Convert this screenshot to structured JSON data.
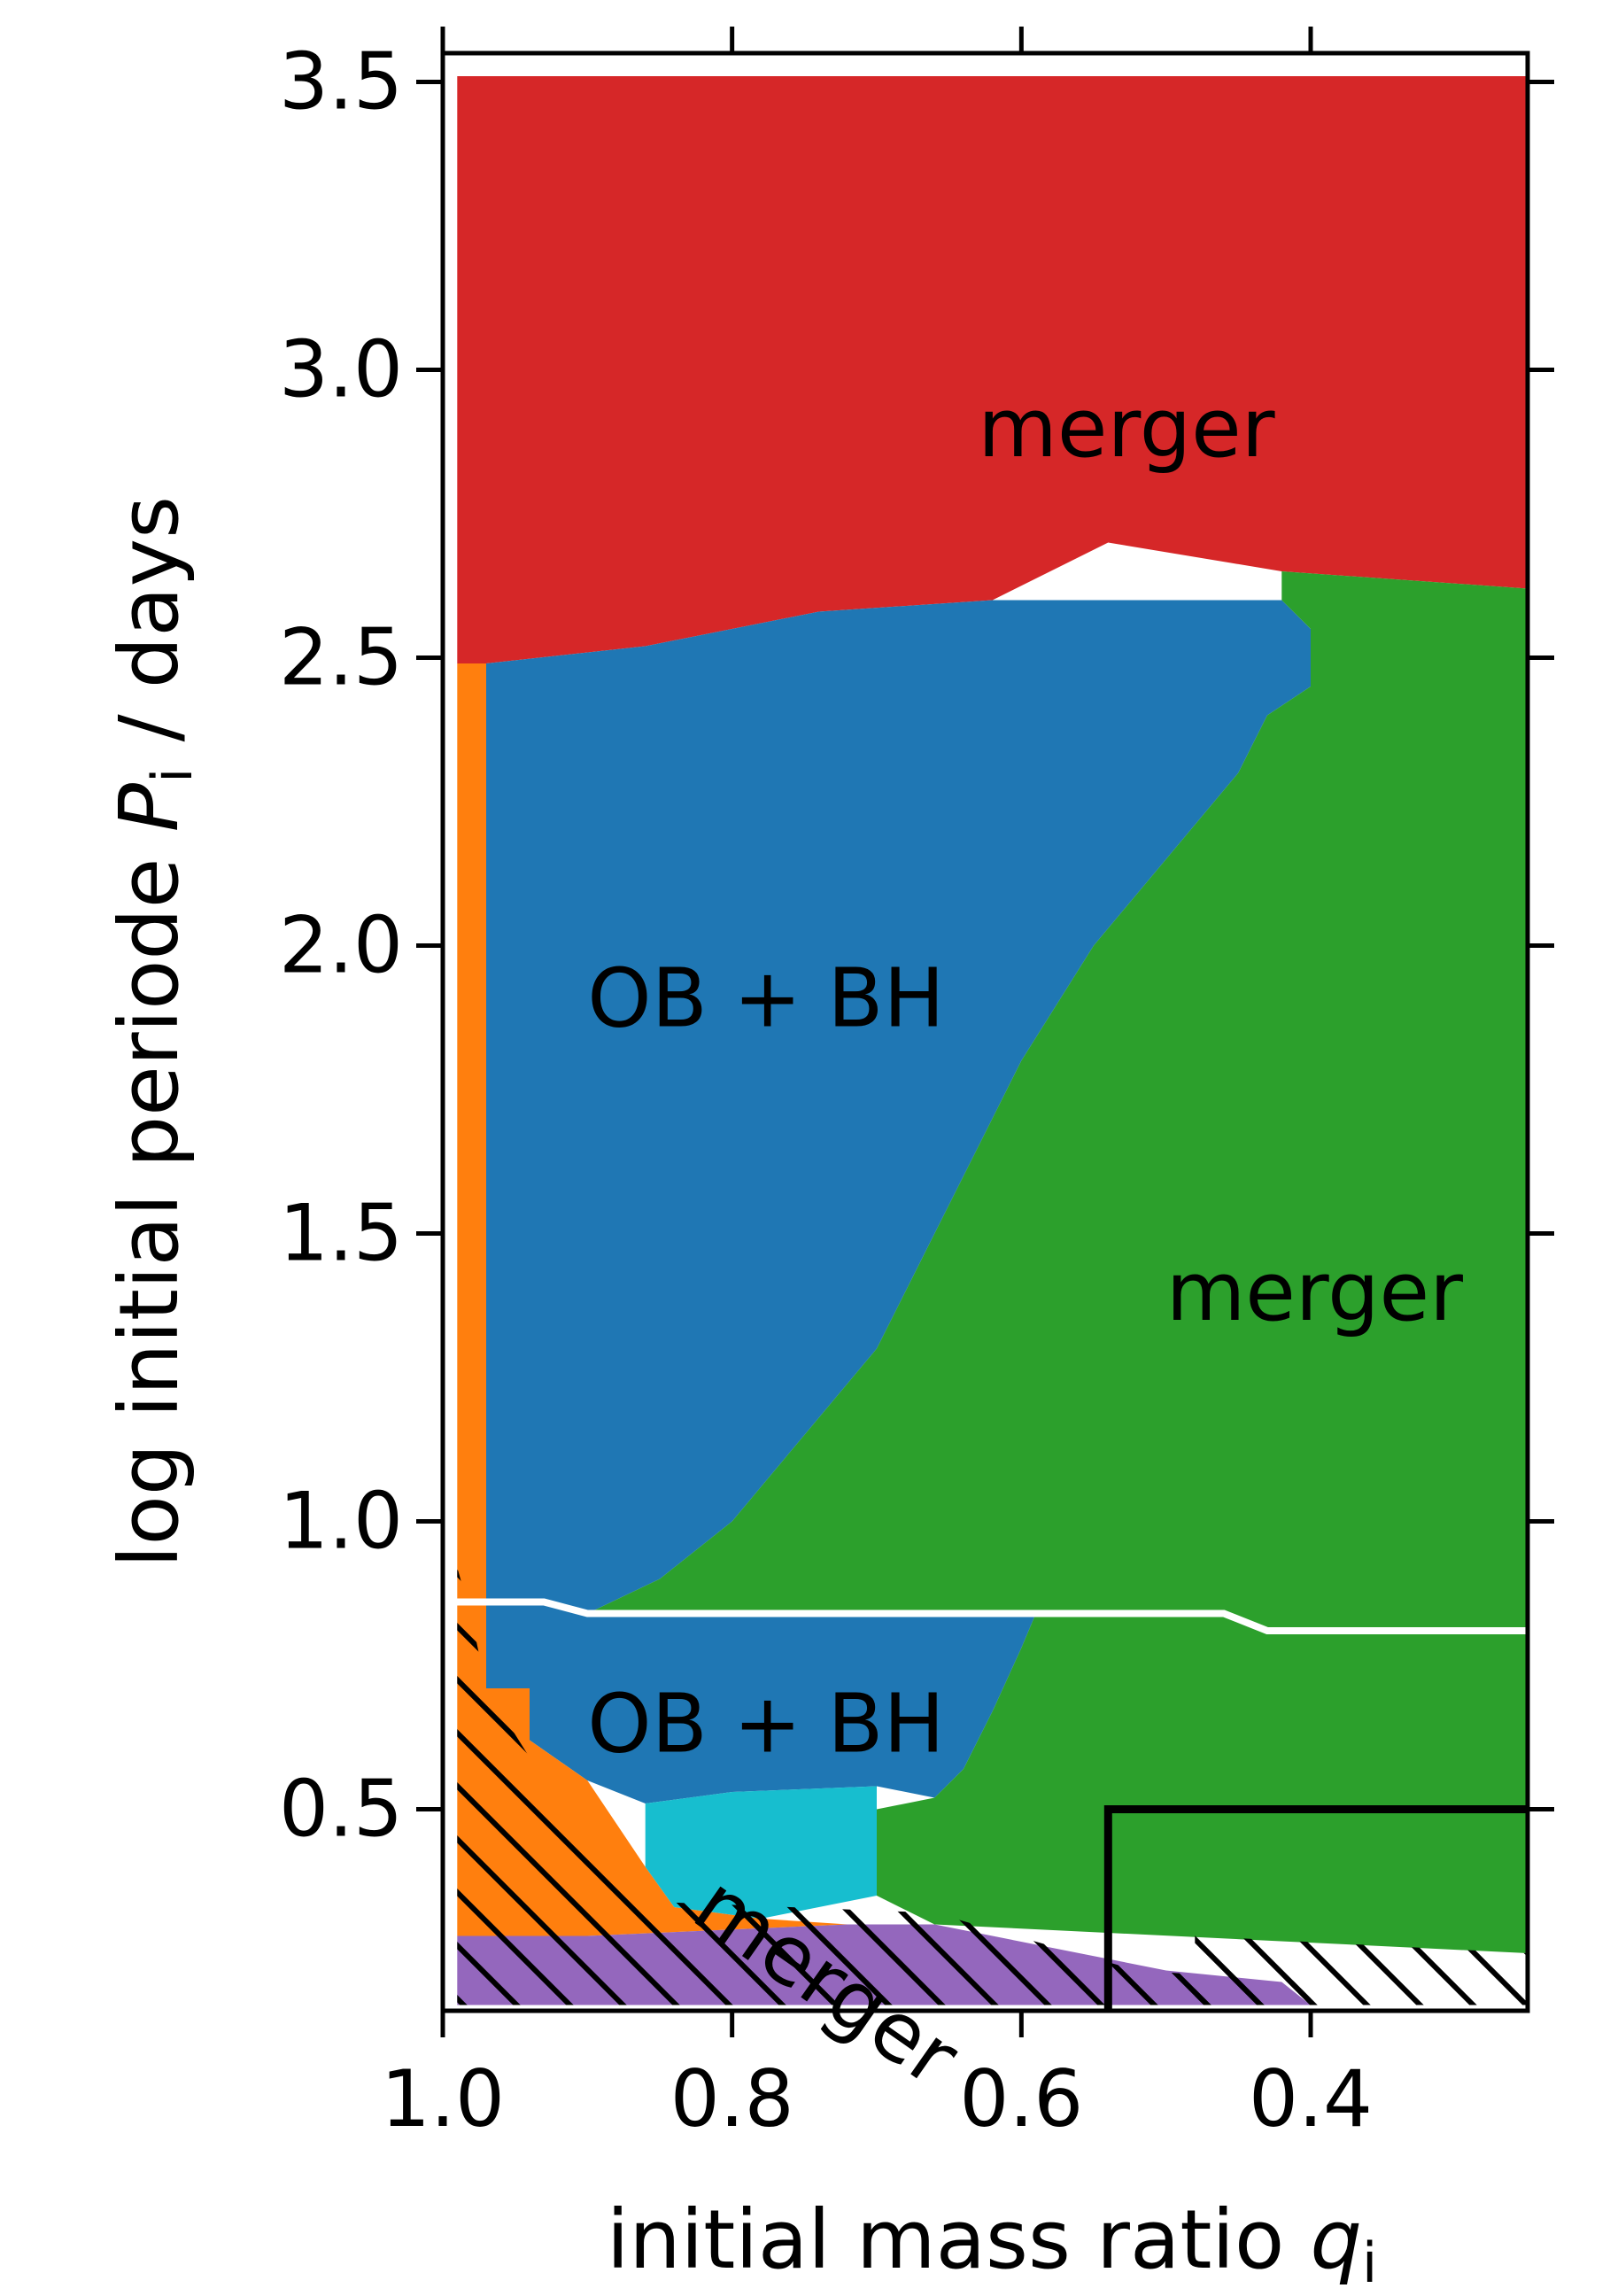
{
  "chart_data": {
    "type": "heatmap",
    "xlabel": "initial mass ratio",
    "xlabel_symbol": "q",
    "xlabel_sub": "i",
    "ylabel": "log initial periode",
    "ylabel_symbol": "P",
    "ylabel_sub": "i",
    "ylabel_unit": "/ days",
    "xlim": [
      1.0,
      0.25
    ],
    "ylim": [
      0.15,
      3.55
    ],
    "x_inverted": true,
    "xticks": [
      "1.0",
      "0.8",
      "0.6",
      "0.4"
    ],
    "xtick_values": [
      1.0,
      0.8,
      0.6,
      0.4
    ],
    "yticks": [
      "0.5",
      "1.0",
      "1.5",
      "2.0",
      "2.5",
      "3.0",
      "3.5"
    ],
    "ytick_values": [
      0.5,
      1.0,
      1.5,
      2.0,
      2.5,
      3.0,
      3.5
    ],
    "colors": {
      "merger_red": "#d62728",
      "ob_bh_blue": "#1f77b4",
      "merger_green": "#2ca02c",
      "orange": "#ff7f0e",
      "cyan": "#17becf",
      "purple": "#9467bd"
    },
    "regions": [
      {
        "name": "red",
        "color_key": "merger_red",
        "vertices": [
          [
            0.99,
            3.51
          ],
          [
            0.25,
            3.51
          ],
          [
            0.25,
            2.62
          ],
          [
            0.42,
            2.65
          ],
          [
            0.54,
            2.7
          ],
          [
            0.62,
            2.6
          ],
          [
            0.74,
            2.58
          ],
          [
            0.86,
            2.52
          ],
          [
            0.97,
            2.49
          ],
          [
            0.99,
            2.49
          ]
        ]
      },
      {
        "name": "blue_upper",
        "color_key": "ob_bh_blue",
        "vertices": [
          [
            0.97,
            2.49
          ],
          [
            0.86,
            2.52
          ],
          [
            0.74,
            2.58
          ],
          [
            0.62,
            2.6
          ],
          [
            0.42,
            2.6
          ],
          [
            0.4,
            2.55
          ],
          [
            0.4,
            2.45
          ],
          [
            0.43,
            2.4
          ],
          [
            0.45,
            2.3
          ],
          [
            0.5,
            2.15
          ],
          [
            0.55,
            2.0
          ],
          [
            0.6,
            1.8
          ],
          [
            0.65,
            1.55
          ],
          [
            0.7,
            1.3
          ],
          [
            0.75,
            1.15
          ],
          [
            0.8,
            1.0
          ],
          [
            0.85,
            0.9
          ],
          [
            0.9,
            0.84
          ],
          [
            0.97,
            0.84
          ]
        ]
      },
      {
        "name": "blue_lower",
        "color_key": "ob_bh_blue",
        "vertices": [
          [
            0.97,
            0.84
          ],
          [
            0.59,
            0.84
          ],
          [
            0.6,
            0.78
          ],
          [
            0.62,
            0.67
          ],
          [
            0.64,
            0.57
          ],
          [
            0.66,
            0.52
          ],
          [
            0.7,
            0.54
          ],
          [
            0.8,
            0.53
          ],
          [
            0.86,
            0.51
          ],
          [
            0.9,
            0.55
          ],
          [
            0.94,
            0.62
          ],
          [
            0.97,
            0.71
          ]
        ]
      },
      {
        "name": "green",
        "color_key": "merger_green",
        "vertices": [
          [
            0.25,
            2.62
          ],
          [
            0.42,
            2.65
          ],
          [
            0.42,
            2.6
          ],
          [
            0.4,
            2.55
          ],
          [
            0.4,
            2.45
          ],
          [
            0.43,
            2.4
          ],
          [
            0.45,
            2.3
          ],
          [
            0.5,
            2.15
          ],
          [
            0.55,
            2.0
          ],
          [
            0.6,
            1.8
          ],
          [
            0.65,
            1.55
          ],
          [
            0.7,
            1.3
          ],
          [
            0.75,
            1.15
          ],
          [
            0.8,
            1.0
          ],
          [
            0.85,
            0.9
          ],
          [
            0.9,
            0.84
          ],
          [
            0.59,
            0.84
          ],
          [
            0.6,
            0.78
          ],
          [
            0.62,
            0.67
          ],
          [
            0.64,
            0.57
          ],
          [
            0.66,
            0.52
          ],
          [
            0.7,
            0.5
          ],
          [
            0.7,
            0.35
          ],
          [
            0.66,
            0.3
          ],
          [
            0.25,
            0.25
          ]
        ]
      },
      {
        "name": "orange_strip",
        "color_key": "orange",
        "vertices": [
          [
            0.99,
            2.49
          ],
          [
            0.97,
            2.49
          ],
          [
            0.97,
            0.71
          ],
          [
            0.99,
            0.71
          ]
        ]
      },
      {
        "name": "orange_lower",
        "color_key": "orange",
        "vertices": [
          [
            0.99,
            0.71
          ],
          [
            0.94,
            0.71
          ],
          [
            0.94,
            0.62
          ],
          [
            0.9,
            0.55
          ],
          [
            0.86,
            0.4
          ],
          [
            0.84,
            0.33
          ],
          [
            0.78,
            0.31
          ],
          [
            0.72,
            0.3
          ],
          [
            0.9,
            0.28
          ],
          [
            0.99,
            0.28
          ]
        ]
      },
      {
        "name": "cyan",
        "color_key": "cyan",
        "vertices": [
          [
            0.86,
            0.51
          ],
          [
            0.8,
            0.53
          ],
          [
            0.7,
            0.54
          ],
          [
            0.7,
            0.35
          ],
          [
            0.78,
            0.31
          ],
          [
            0.84,
            0.33
          ],
          [
            0.86,
            0.4
          ]
        ]
      },
      {
        "name": "purple",
        "color_key": "purple",
        "vertices": [
          [
            0.99,
            0.28
          ],
          [
            0.9,
            0.28
          ],
          [
            0.72,
            0.3
          ],
          [
            0.66,
            0.3
          ],
          [
            0.5,
            0.22
          ],
          [
            0.42,
            0.2
          ],
          [
            0.4,
            0.16
          ],
          [
            0.99,
            0.16
          ]
        ]
      }
    ],
    "white_line": [
      [
        1.0,
        0.86
      ],
      [
        0.93,
        0.86
      ],
      [
        0.9,
        0.84
      ],
      [
        0.46,
        0.84
      ],
      [
        0.43,
        0.81
      ],
      [
        0.25,
        0.81
      ]
    ],
    "box_line": [
      [
        0.54,
        0.15
      ],
      [
        0.54,
        0.5
      ],
      [
        0.25,
        0.5
      ]
    ],
    "hatched": [
      [
        [
          0.99,
          0.92
        ],
        [
          0.99,
          0.16
        ],
        [
          0.4,
          0.16
        ],
        [
          0.4,
          0.2
        ],
        [
          0.52,
          0.22
        ],
        [
          0.66,
          0.32
        ],
        [
          0.86,
          0.34
        ],
        [
          0.93,
          0.55
        ],
        [
          0.97,
          0.71
        ],
        [
          0.98,
          0.83
        ]
      ],
      [
        [
          0.48,
          0.16
        ],
        [
          0.48,
          0.28
        ],
        [
          0.25,
          0.25
        ],
        [
          0.25,
          0.16
        ]
      ]
    ],
    "labels": [
      {
        "text": "merger",
        "x": 0.63,
        "y": 2.85,
        "rotation": 0
      },
      {
        "text": "OB + BH",
        "x": 0.9,
        "y": 1.86,
        "rotation": 0
      },
      {
        "text": "merger",
        "x": 0.5,
        "y": 1.35,
        "rotation": 0
      },
      {
        "text": "OB + BH",
        "x": 0.9,
        "y": 0.6,
        "rotation": 0
      },
      {
        "text": "merger",
        "x": 0.83,
        "y": 0.31,
        "rotation": 35
      }
    ]
  }
}
